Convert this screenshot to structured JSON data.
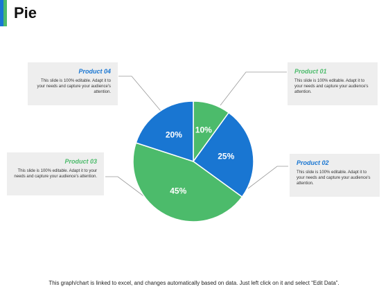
{
  "title": "Pie",
  "colors": {
    "blue": "#1976d2",
    "green": "#4cbb6b"
  },
  "cards": [
    {
      "id": "c01",
      "name": "Product 01",
      "desc": "This slide is 100% editable. Adapt it to your needs and capture your audience's attention.",
      "color": "green"
    },
    {
      "id": "c02",
      "name": "Product 02",
      "desc": "This slide is 100% editable. Adapt it to your needs and capture your audience's attention.",
      "color": "blue"
    },
    {
      "id": "c03",
      "name": "Product 03",
      "desc": "This slide is 100% editable. Adapt it to your needs and capture your audience's attention.",
      "color": "green"
    },
    {
      "id": "c04",
      "name": "Product 04",
      "desc": "This slide is 100% editable. Adapt it to your needs and capture your audience's attention.",
      "color": "blue"
    }
  ],
  "chart_data": {
    "type": "pie",
    "categories": [
      "Product 01",
      "Product 02",
      "Product 03",
      "Product 04"
    ],
    "values": [
      10,
      25,
      45,
      20
    ],
    "labels": [
      "10%",
      "25%",
      "45%",
      "20%"
    ],
    "colors": [
      "#4cbb6b",
      "#1976d2",
      "#4cbb6b",
      "#1976d2"
    ]
  },
  "footer": "This graph/chart is linked to excel, and changes automatically based on data. Just left click on it and select “Edit Data”."
}
